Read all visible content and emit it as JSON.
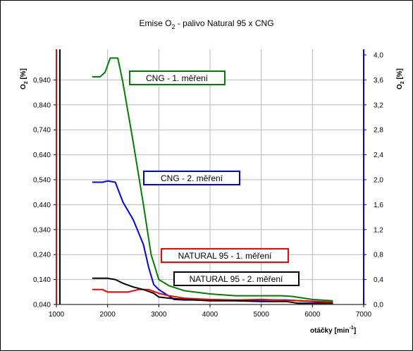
{
  "chart_data": {
    "type": "line",
    "title": {
      "pre": "Emise O",
      "sub": "2",
      "post": " - palivo Natural 95 x CNG"
    },
    "xlabel": {
      "pre": "otáčky [min",
      "sup": "-1",
      "post": "]"
    },
    "ylabel_left": {
      "pre": "O",
      "sub": "2",
      "post": " [%]"
    },
    "ylabel_right": {
      "pre": "O",
      "sub": "2",
      "post": " [%]"
    },
    "x_ticks": [
      "1000",
      "2000",
      "3000",
      "4000",
      "5000",
      "6000",
      "7000"
    ],
    "xlim": [
      1000,
      7000
    ],
    "y_left_ticks": [
      "0,040",
      "0,140",
      "0,240",
      "0,340",
      "0,440",
      "0,540",
      "0,640",
      "0,740",
      "0,840",
      "0,940"
    ],
    "ylim_left": [
      0.04,
      1.04
    ],
    "y_right_ticks": [
      "0,0",
      "0,4",
      "0,8",
      "1,2",
      "1,6",
      "2,0",
      "2,4",
      "2,8",
      "3,2",
      "3,6",
      "4,0"
    ],
    "ylim_right": [
      0.0,
      4.0
    ],
    "grid": true,
    "series": [
      {
        "name": "CNG - 1. měření",
        "axis": "right",
        "color": "#008000",
        "x": [
          1700,
          1850,
          1950,
          2050,
          2200,
          2300,
          2500,
          2700,
          2850,
          3000,
          3200,
          3500,
          4000,
          4500,
          5000,
          5400,
          5600,
          6000,
          6400
        ],
        "y": [
          3.65,
          3.65,
          3.72,
          3.95,
          3.95,
          3.55,
          2.6,
          1.6,
          0.8,
          0.4,
          0.3,
          0.22,
          0.17,
          0.14,
          0.14,
          0.14,
          0.13,
          0.08,
          0.06
        ]
      },
      {
        "name": "CNG - 2. měření",
        "axis": "left",
        "color": "#0000FF",
        "x": [
          1700,
          1900,
          2000,
          2150,
          2300,
          2500,
          2700,
          2800,
          2900,
          3000,
          3300,
          3500,
          4000,
          4500,
          5000,
          5500,
          6000,
          6400
        ],
        "y": [
          0.53,
          0.53,
          0.535,
          0.53,
          0.45,
          0.38,
          0.28,
          0.19,
          0.12,
          0.1,
          0.06,
          0.058,
          0.058,
          0.058,
          0.058,
          0.058,
          0.052,
          0.045
        ]
      },
      {
        "name": "NATURAL 95 - 1. měření",
        "axis": "left",
        "color": "#FF0000",
        "x": [
          1700,
          1900,
          2000,
          2400,
          2600,
          2800,
          3000,
          3200,
          3500,
          4000,
          4500,
          5000,
          5500,
          6000,
          6400
        ],
        "y": [
          0.1,
          0.1,
          0.09,
          0.09,
          0.1,
          0.1,
          0.085,
          0.075,
          0.065,
          0.06,
          0.058,
          0.06,
          0.057,
          0.053,
          0.05
        ]
      },
      {
        "name": "NATURAL 95 - 2. měření",
        "axis": "left",
        "color": "#000000",
        "x": [
          1700,
          2000,
          2150,
          2300,
          2500,
          2700,
          2900,
          3000,
          3200,
          3500,
          4000,
          4500,
          5000,
          5500,
          5700,
          6000,
          6400
        ],
        "y": [
          0.145,
          0.145,
          0.14,
          0.125,
          0.11,
          0.1,
          0.085,
          0.07,
          0.065,
          0.06,
          0.055,
          0.055,
          0.052,
          0.052,
          0.045,
          0.045,
          0.045
        ]
      }
    ]
  }
}
